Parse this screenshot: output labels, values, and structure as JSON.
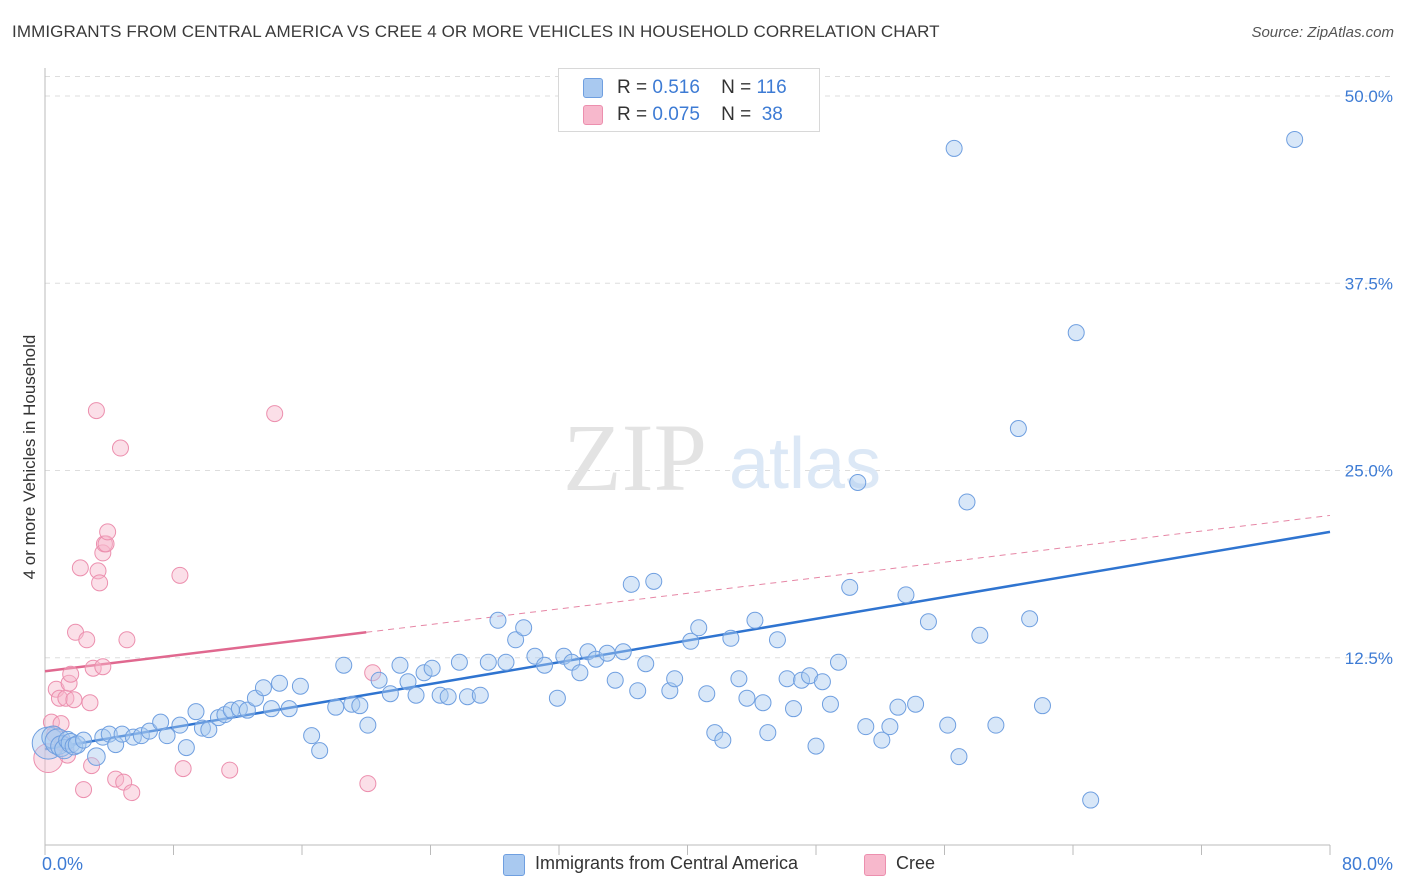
{
  "header": {
    "title": "IMMIGRANTS FROM CENTRAL AMERICA VS CREE 4 OR MORE VEHICLES IN HOUSEHOLD CORRELATION CHART",
    "source": "Source: ZipAtlas.com"
  },
  "watermark": {
    "zip": "ZIP",
    "atlas": "atlas"
  },
  "legend": {
    "rows": [
      {
        "r_label": "R =",
        "r_value": "0.516",
        "n_label": "N =",
        "n_value": "116"
      },
      {
        "r_label": "R =",
        "r_value": "0.075",
        "n_label": "N =",
        "n_value": "38"
      }
    ]
  },
  "bottom_legend": {
    "items": [
      {
        "label": "Immigrants from Central America"
      },
      {
        "label": "Cree"
      }
    ]
  },
  "colors": {
    "blue_fill": "#a9c9f0",
    "blue_stroke": "#6f9fe0",
    "blue_line": "#2f74d0",
    "pink_fill": "#f7b8cc",
    "pink_stroke": "#ec8fae",
    "pink_line": "#e0688f",
    "tick_label": "#3d7bd4",
    "grid": "#dddddd"
  },
  "chart_data": {
    "type": "scatter",
    "title": "IMMIGRANTS FROM CENTRAL AMERICA VS CREE 4 OR MORE VEHICLES IN HOUSEHOLD CORRELATION CHART",
    "ylabel": "4 or more Vehicles in Household",
    "xlabel": "",
    "xlim": [
      0,
      80
    ],
    "ylim": [
      0,
      50
    ],
    "x_tick_labels": [
      "0.0%",
      "80.0%"
    ],
    "y_ticks": [
      12.5,
      25.0,
      37.5,
      50.0
    ],
    "y_tick_labels": [
      "12.5%",
      "25.0%",
      "37.5%",
      "50.0%"
    ],
    "grid": "horizontal dashed",
    "legend_position": "top-center",
    "series": [
      {
        "name": "Immigrants from Central America",
        "r": 0.516,
        "n": 116,
        "trend": {
          "x": [
            0,
            80
          ],
          "y": [
            6.4,
            20.9
          ],
          "style": "solid"
        },
        "points": [
          [
            0.2,
            6.8,
            20
          ],
          [
            0.5,
            7.2,
            14
          ],
          [
            0.8,
            6.9,
            16
          ],
          [
            1.0,
            6.6,
            13
          ],
          [
            1.2,
            6.4,
            12
          ],
          [
            1.4,
            7.0,
            11
          ],
          [
            1.6,
            6.8,
            12
          ],
          [
            1.8,
            6.6,
            11
          ],
          [
            2.0,
            6.7,
            11
          ],
          [
            2.4,
            7.0,
            10
          ],
          [
            3.2,
            5.9,
            11
          ],
          [
            3.6,
            7.2,
            10
          ],
          [
            4.0,
            7.4,
            10
          ],
          [
            4.4,
            6.7,
            10
          ],
          [
            4.8,
            7.4,
            10
          ],
          [
            5.5,
            7.2,
            10
          ],
          [
            6.0,
            7.3,
            10
          ],
          [
            6.5,
            7.6,
            10
          ],
          [
            7.2,
            8.2,
            10
          ],
          [
            7.6,
            7.3,
            10
          ],
          [
            8.4,
            8.0,
            10
          ],
          [
            8.8,
            6.5,
            10
          ],
          [
            9.4,
            8.9,
            10
          ],
          [
            9.8,
            7.8,
            10
          ],
          [
            10.2,
            7.7,
            10
          ],
          [
            10.8,
            8.5,
            10
          ],
          [
            11.2,
            8.7,
            10
          ],
          [
            11.6,
            9.0,
            10
          ],
          [
            12.1,
            9.1,
            10
          ],
          [
            12.6,
            9.0,
            10
          ],
          [
            13.1,
            9.8,
            10
          ],
          [
            13.6,
            10.5,
            10
          ],
          [
            14.1,
            9.1,
            10
          ],
          [
            14.6,
            10.8,
            10
          ],
          [
            15.2,
            9.1,
            10
          ],
          [
            15.9,
            10.6,
            10
          ],
          [
            16.6,
            7.3,
            10
          ],
          [
            17.1,
            6.3,
            10
          ],
          [
            18.1,
            9.2,
            10
          ],
          [
            18.6,
            12.0,
            10
          ],
          [
            19.1,
            9.4,
            10
          ],
          [
            19.6,
            9.3,
            10
          ],
          [
            20.1,
            8.0,
            10
          ],
          [
            20.8,
            11.0,
            10
          ],
          [
            21.5,
            10.1,
            10
          ],
          [
            22.1,
            12.0,
            10
          ],
          [
            22.6,
            10.9,
            10
          ],
          [
            23.1,
            10.0,
            10
          ],
          [
            23.6,
            11.5,
            10
          ],
          [
            24.1,
            11.8,
            10
          ],
          [
            24.6,
            10.0,
            10
          ],
          [
            25.1,
            9.9,
            10
          ],
          [
            25.8,
            12.2,
            10
          ],
          [
            26.3,
            9.9,
            10
          ],
          [
            27.1,
            10.0,
            10
          ],
          [
            27.6,
            12.2,
            10
          ],
          [
            28.2,
            15.0,
            10
          ],
          [
            28.7,
            12.2,
            10
          ],
          [
            29.3,
            13.7,
            10
          ],
          [
            29.8,
            14.5,
            10
          ],
          [
            30.5,
            12.6,
            10
          ],
          [
            31.1,
            12.0,
            10
          ],
          [
            31.9,
            9.8,
            10
          ],
          [
            32.3,
            12.6,
            10
          ],
          [
            32.8,
            12.2,
            10
          ],
          [
            33.3,
            11.5,
            10
          ],
          [
            33.8,
            12.9,
            10
          ],
          [
            34.3,
            12.4,
            10
          ],
          [
            35.0,
            12.8,
            10
          ],
          [
            35.5,
            11.0,
            10
          ],
          [
            36.0,
            12.9,
            10
          ],
          [
            36.5,
            17.4,
            10
          ],
          [
            36.9,
            10.3,
            10
          ],
          [
            37.4,
            12.1,
            10
          ],
          [
            37.9,
            17.6,
            10
          ],
          [
            38.9,
            10.3,
            10
          ],
          [
            39.2,
            11.1,
            10
          ],
          [
            40.2,
            13.6,
            10
          ],
          [
            40.7,
            14.5,
            10
          ],
          [
            41.2,
            10.1,
            10
          ],
          [
            41.7,
            7.5,
            10
          ],
          [
            42.2,
            7.0,
            10
          ],
          [
            42.7,
            13.8,
            10
          ],
          [
            43.2,
            11.1,
            10
          ],
          [
            43.7,
            9.8,
            10
          ],
          [
            44.2,
            15.0,
            10
          ],
          [
            44.7,
            9.5,
            10
          ],
          [
            45.0,
            7.5,
            10
          ],
          [
            45.6,
            13.7,
            10
          ],
          [
            46.2,
            11.1,
            10
          ],
          [
            46.6,
            9.1,
            10
          ],
          [
            47.1,
            11.0,
            10
          ],
          [
            47.6,
            11.3,
            10
          ],
          [
            48.0,
            6.6,
            10
          ],
          [
            48.4,
            10.9,
            10
          ],
          [
            48.9,
            9.4,
            10
          ],
          [
            49.4,
            12.2,
            10
          ],
          [
            50.1,
            17.2,
            10
          ],
          [
            50.6,
            24.2,
            10
          ],
          [
            51.1,
            7.9,
            10
          ],
          [
            52.1,
            7.0,
            10
          ],
          [
            52.6,
            7.9,
            10
          ],
          [
            53.1,
            9.2,
            10
          ],
          [
            53.6,
            16.7,
            10
          ],
          [
            54.2,
            9.4,
            10
          ],
          [
            55.0,
            14.9,
            10
          ],
          [
            56.2,
            8.0,
            10
          ],
          [
            56.6,
            46.5,
            10
          ],
          [
            56.9,
            5.9,
            10
          ],
          [
            57.4,
            22.9,
            10
          ],
          [
            58.2,
            14.0,
            10
          ],
          [
            59.2,
            8.0,
            10
          ],
          [
            60.6,
            27.8,
            10
          ],
          [
            61.3,
            15.1,
            10
          ],
          [
            62.1,
            9.3,
            10
          ],
          [
            64.2,
            34.2,
            10
          ],
          [
            65.1,
            3.0,
            10
          ],
          [
            77.8,
            47.1,
            10
          ]
        ]
      },
      {
        "name": "Cree",
        "r": 0.075,
        "n": 38,
        "trend": {
          "x": [
            0,
            20
          ],
          "y": [
            11.6,
            14.2
          ],
          "style": "solid",
          "extended_to": [
            80,
            22.0
          ],
          "extended_style": "dashed"
        },
        "points": [
          [
            0.2,
            5.8,
            18
          ],
          [
            0.4,
            8.2,
            10
          ],
          [
            0.6,
            7.4,
            10
          ],
          [
            0.7,
            10.4,
            10
          ],
          [
            0.9,
            9.8,
            10
          ],
          [
            1.0,
            8.1,
            10
          ],
          [
            1.1,
            6.8,
            10
          ],
          [
            1.3,
            9.8,
            10
          ],
          [
            1.4,
            6.0,
            10
          ],
          [
            1.5,
            10.8,
            10
          ],
          [
            1.6,
            11.4,
            10
          ],
          [
            1.8,
            9.7,
            10
          ],
          [
            1.9,
            14.2,
            10
          ],
          [
            2.2,
            18.5,
            10
          ],
          [
            2.4,
            3.7,
            10
          ],
          [
            2.6,
            13.7,
            10
          ],
          [
            2.8,
            9.5,
            10
          ],
          [
            2.9,
            5.3,
            10
          ],
          [
            3.0,
            11.8,
            10
          ],
          [
            3.2,
            29.0,
            10
          ],
          [
            3.3,
            18.3,
            10
          ],
          [
            3.4,
            17.5,
            10
          ],
          [
            3.6,
            11.9,
            10
          ],
          [
            3.6,
            19.5,
            10
          ],
          [
            3.7,
            20.1,
            10
          ],
          [
            3.8,
            20.1,
            10
          ],
          [
            3.9,
            20.9,
            10
          ],
          [
            4.4,
            4.4,
            10
          ],
          [
            4.7,
            26.5,
            10
          ],
          [
            4.9,
            4.2,
            10
          ],
          [
            5.1,
            13.7,
            10
          ],
          [
            5.4,
            3.5,
            10
          ],
          [
            8.4,
            18.0,
            10
          ],
          [
            8.6,
            5.1,
            10
          ],
          [
            11.5,
            5.0,
            10
          ],
          [
            14.3,
            28.8,
            10
          ],
          [
            20.1,
            4.1,
            10
          ],
          [
            20.4,
            11.5,
            10
          ]
        ]
      }
    ]
  }
}
